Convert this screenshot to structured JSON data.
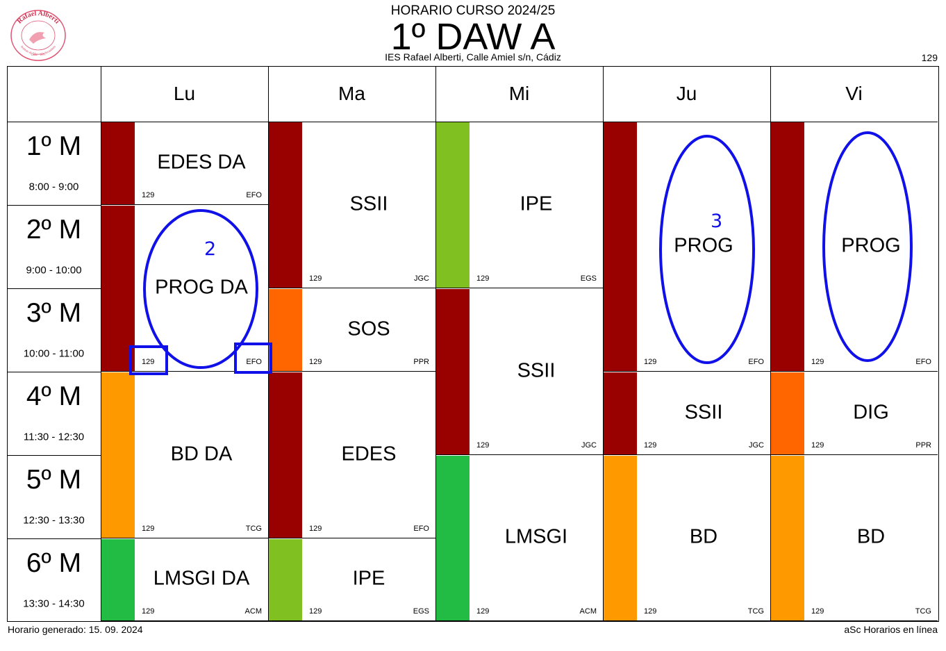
{
  "header": {
    "subtitle": "HORARIO CURSO 2024/25",
    "title": "1º DAW A",
    "school": "IES Rafael Alberti, Calle Amiel s/n, Cádiz",
    "room": "129"
  },
  "logo": {
    "text": "Rafael Alberti",
    "subtext": "Instituto de Educación Secundaria",
    "place": "Cádiz · 1977"
  },
  "days": [
    "Lu",
    "Ma",
    "Mi",
    "Ju",
    "Vi"
  ],
  "periods": [
    {
      "name": "1º M",
      "time": "8:00 - 9:00"
    },
    {
      "name": "2º M",
      "time": "9:00 - 10:00"
    },
    {
      "name": "3º M",
      "time": "10:00 - 11:00"
    },
    {
      "name": "4º M",
      "time": "11:30 - 12:30"
    },
    {
      "name": "5º M",
      "time": "12:30 - 13:30"
    },
    {
      "name": "6º M",
      "time": "13:30 - 14:30"
    }
  ],
  "lessons": [
    {
      "day": 0,
      "start": 0,
      "span": 1,
      "subject": "EDES DA",
      "room": "129",
      "teacher": "EFO",
      "color": "#990000"
    },
    {
      "day": 0,
      "start": 1,
      "span": 2,
      "subject": "PROG DA",
      "room": "129",
      "teacher": "EFO",
      "color": "#990000"
    },
    {
      "day": 0,
      "start": 3,
      "span": 2,
      "subject": "BD DA",
      "room": "129",
      "teacher": "TCG",
      "color": "#ff9900"
    },
    {
      "day": 0,
      "start": 5,
      "span": 1,
      "subject": "LMSGI DA",
      "room": "129",
      "teacher": "ACM",
      "color": "#22bb44"
    },
    {
      "day": 1,
      "start": 0,
      "span": 2,
      "subject": "SSII",
      "room": "129",
      "teacher": "JGC",
      "color": "#990000"
    },
    {
      "day": 1,
      "start": 2,
      "span": 1,
      "subject": "SOS",
      "room": "129",
      "teacher": "PPR",
      "color": "#ff6600"
    },
    {
      "day": 1,
      "start": 3,
      "span": 2,
      "subject": "EDES",
      "room": "129",
      "teacher": "EFO",
      "color": "#990000"
    },
    {
      "day": 1,
      "start": 5,
      "span": 1,
      "subject": "IPE",
      "room": "129",
      "teacher": "EGS",
      "color": "#80c020"
    },
    {
      "day": 2,
      "start": 0,
      "span": 2,
      "subject": "IPE",
      "room": "129",
      "teacher": "EGS",
      "color": "#80c020"
    },
    {
      "day": 2,
      "start": 2,
      "span": 2,
      "subject": "SSII",
      "room": "129",
      "teacher": "JGC",
      "color": "#990000"
    },
    {
      "day": 2,
      "start": 4,
      "span": 2,
      "subject": "LMSGI",
      "room": "129",
      "teacher": "ACM",
      "color": "#22bb44"
    },
    {
      "day": 3,
      "start": 0,
      "span": 3,
      "subject": "PROG",
      "room": "129",
      "teacher": "EFO",
      "color": "#990000"
    },
    {
      "day": 3,
      "start": 3,
      "span": 1,
      "subject": "SSII",
      "room": "129",
      "teacher": "JGC",
      "color": "#990000"
    },
    {
      "day": 3,
      "start": 4,
      "span": 2,
      "subject": "BD",
      "room": "129",
      "teacher": "TCG",
      "color": "#ff9900"
    },
    {
      "day": 4,
      "start": 0,
      "span": 3,
      "subject": "PROG",
      "room": "129",
      "teacher": "EFO",
      "color": "#990000"
    },
    {
      "day": 4,
      "start": 3,
      "span": 1,
      "subject": "DIG",
      "room": "129",
      "teacher": "PPR",
      "color": "#ff6600"
    },
    {
      "day": 4,
      "start": 4,
      "span": 2,
      "subject": "BD",
      "room": "129",
      "teacher": "TCG",
      "color": "#ff9900"
    }
  ],
  "annotations": {
    "color": "#1010e8",
    "note_two": "2",
    "note_three": "3"
  },
  "footer": {
    "generated": "Horario generado: 15. 09. 2024",
    "software": "aSc Horarios en línea"
  }
}
